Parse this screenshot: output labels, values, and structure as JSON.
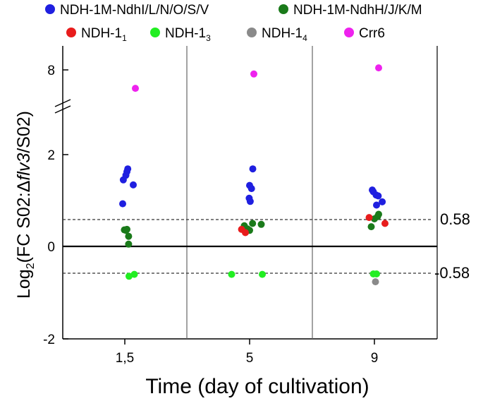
{
  "chart_data": {
    "type": "scatter",
    "title": "",
    "xlabel": "Time (day of cultivation)",
    "ylabel": {
      "prefix": "Log",
      "sub": "2",
      "mid": "(FC S02:",
      "delta": "Δ",
      "italic": "flv3",
      "suffix": "/S02)"
    },
    "categories": [
      "1,5",
      "5",
      "9"
    ],
    "ylim": [
      -2,
      8
    ],
    "yticks": [
      {
        "value": 8,
        "label": "8"
      },
      {
        "value": 2,
        "label": "2"
      },
      {
        "value": 0,
        "label": "0"
      },
      {
        "value": -2,
        "label": "-2"
      }
    ],
    "axis_break": "between 2 and 8",
    "reference_lines": [
      {
        "value": 0.58,
        "label": "0.58"
      },
      {
        "value": -0.58,
        "label": "-0.58"
      }
    ],
    "legend": [
      {
        "key": "ndhi",
        "label": "NDH-1M-NdhI/L/N/O/S/V",
        "color": "#1f1fe0"
      },
      {
        "key": "ndhh",
        "label": "NDH-1M-NdhH/J/K/M",
        "color": "#1a7a1a"
      },
      {
        "key": "ndh1_1",
        "label": "NDH-1",
        "sub": "1",
        "color": "#e81c1c"
      },
      {
        "key": "ndh1_3",
        "label": "NDH-1",
        "sub": "3",
        "color": "#22ee22"
      },
      {
        "key": "ndh1_4",
        "label": "NDH-1",
        "sub": "4",
        "color": "#8a8a8a"
      },
      {
        "key": "crr6",
        "label": "Crr6",
        "color": "#ee22ee"
      }
    ],
    "series": [
      {
        "name": "NDH-1M-NdhI/L/N/O/S/V",
        "color": "#1f1fe0",
        "points": [
          {
            "x": "1,5",
            "offset": -0.1,
            "y": 0.93
          },
          {
            "x": "1,5",
            "offset": -0.07,
            "y": 1.45
          },
          {
            "x": "1,5",
            "offset": 0.05,
            "y": 1.55
          },
          {
            "x": "1,5",
            "offset": 0.1,
            "y": 1.63
          },
          {
            "x": "1,5",
            "offset": 0.14,
            "y": 1.69
          },
          {
            "x": "1,5",
            "offset": 0.4,
            "y": 1.34
          },
          {
            "x": "5",
            "offset": -0.02,
            "y": 1.05
          },
          {
            "x": "5",
            "offset": 0.03,
            "y": 0.98
          },
          {
            "x": "5",
            "offset": 0.0,
            "y": 1.33
          },
          {
            "x": "5",
            "offset": 0.09,
            "y": 1.26
          },
          {
            "x": "5",
            "offset": 0.15,
            "y": 1.69
          },
          {
            "x": "9",
            "offset": -0.1,
            "y": 1.23
          },
          {
            "x": "9",
            "offset": -0.05,
            "y": 1.19
          },
          {
            "x": "9",
            "offset": 0.08,
            "y": 1.12
          },
          {
            "x": "9",
            "offset": 0.18,
            "y": 1.1
          },
          {
            "x": "9",
            "offset": 0.1,
            "y": 0.9
          },
          {
            "x": "9",
            "offset": 0.37,
            "y": 0.97
          }
        ]
      },
      {
        "name": "NDH-1M-NdhH/J/K/M",
        "color": "#1a7a1a",
        "points": [
          {
            "x": "1,5",
            "offset": -0.02,
            "y": 0.36
          },
          {
            "x": "1,5",
            "offset": 0.06,
            "y": 0.35
          },
          {
            "x": "1,5",
            "offset": 0.1,
            "y": 0.37
          },
          {
            "x": "1,5",
            "offset": 0.18,
            "y": 0.22
          },
          {
            "x": "1,5",
            "offset": 0.18,
            "y": 0.05
          },
          {
            "x": "5",
            "offset": -0.25,
            "y": 0.45
          },
          {
            "x": "5",
            "offset": -0.1,
            "y": 0.38
          },
          {
            "x": "5",
            "offset": 0.0,
            "y": 0.35
          },
          {
            "x": "5",
            "offset": 0.14,
            "y": 0.5
          },
          {
            "x": "5",
            "offset": 0.55,
            "y": 0.48
          },
          {
            "x": "9",
            "offset": 0.0,
            "y": 0.6
          },
          {
            "x": "9",
            "offset": 0.15,
            "y": 0.65
          },
          {
            "x": "9",
            "offset": 0.2,
            "y": 0.7
          },
          {
            "x": "9",
            "offset": -0.15,
            "y": 0.43
          }
        ]
      },
      {
        "name": "NDH-1₁",
        "color": "#e81c1c",
        "points": [
          {
            "x": "5",
            "offset": -0.38,
            "y": 0.37
          },
          {
            "x": "5",
            "offset": -0.2,
            "y": 0.3
          },
          {
            "x": "9",
            "offset": -0.25,
            "y": 0.63
          },
          {
            "x": "9",
            "offset": 0.5,
            "y": 0.5
          }
        ]
      },
      {
        "name": "NDH-1₃",
        "color": "#22ee22",
        "points": [
          {
            "x": "1,5",
            "offset": 0.2,
            "y": -0.65
          },
          {
            "x": "1,5",
            "offset": 0.45,
            "y": -0.61
          },
          {
            "x": "5",
            "offset": -0.85,
            "y": -0.61
          },
          {
            "x": "5",
            "offset": 0.6,
            "y": -0.61
          },
          {
            "x": "9",
            "offset": -0.05,
            "y": -0.6
          },
          {
            "x": "9",
            "offset": 0.1,
            "y": -0.6
          }
        ]
      },
      {
        "name": "NDH-1₄",
        "color": "#8a8a8a",
        "points": [
          {
            "x": "9",
            "offset": 0.05,
            "y": -0.77
          }
        ]
      },
      {
        "name": "Crr6",
        "color": "#ee22ee",
        "points": [
          {
            "x": "1,5",
            "offset": 0.5,
            "y": 7.1
          },
          {
            "x": "5",
            "offset": 0.2,
            "y": 7.8
          },
          {
            "x": "9",
            "offset": 0.2,
            "y": 8.1
          }
        ]
      }
    ]
  }
}
